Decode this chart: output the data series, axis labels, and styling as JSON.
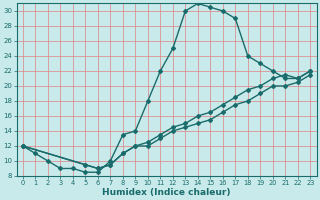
{
  "xlabel": "Humidex (Indice chaleur)",
  "bg_color": "#c8eaea",
  "line_color": "#1a6b6b",
  "grid_color_major": "#e08080",
  "grid_color_minor": "#e0b0b0",
  "xlim": [
    -0.5,
    23.5
  ],
  "ylim": [
    8,
    31
  ],
  "xticks": [
    0,
    1,
    2,
    3,
    4,
    5,
    6,
    7,
    8,
    9,
    10,
    11,
    12,
    13,
    14,
    15,
    16,
    17,
    18,
    19,
    20,
    21,
    22,
    23
  ],
  "yticks": [
    8,
    10,
    12,
    14,
    16,
    18,
    20,
    22,
    24,
    26,
    28,
    30
  ],
  "curve1_x": [
    0,
    1,
    2,
    3,
    4,
    5,
    6,
    7,
    8,
    9,
    10,
    11,
    12,
    13,
    14,
    15,
    16,
    17,
    18,
    19,
    20,
    21,
    22,
    23
  ],
  "curve1_y": [
    12,
    11,
    10,
    9,
    9,
    8.5,
    8.5,
    10,
    13.5,
    14,
    18,
    22,
    25,
    30,
    31,
    30.5,
    30,
    29,
    24,
    23,
    22,
    21,
    21,
    22
  ],
  "curve2_x": [
    0,
    5,
    6,
    7,
    8,
    9,
    10,
    11,
    12,
    13,
    14,
    15,
    16,
    17,
    18,
    19,
    20,
    21,
    22,
    23
  ],
  "curve2_y": [
    12,
    9.5,
    9,
    9.5,
    11,
    12,
    12.5,
    13.5,
    14.5,
    15,
    16,
    16.5,
    17.5,
    18.5,
    19.5,
    20,
    21,
    21.5,
    21,
    22
  ],
  "curve3_x": [
    0,
    5,
    6,
    7,
    8,
    9,
    10,
    11,
    12,
    13,
    14,
    15,
    16,
    17,
    18,
    19,
    20,
    21,
    22,
    23
  ],
  "curve3_y": [
    12,
    9.5,
    9,
    9.5,
    11,
    12,
    12,
    13,
    14,
    14.5,
    15,
    15.5,
    16.5,
    17.5,
    18,
    19,
    20,
    20,
    20.5,
    21.5
  ],
  "marker": "D",
  "marker_size": 2.0,
  "linewidth": 1.0,
  "tick_fontsize": 5.5,
  "xlabel_fontsize": 6.5
}
